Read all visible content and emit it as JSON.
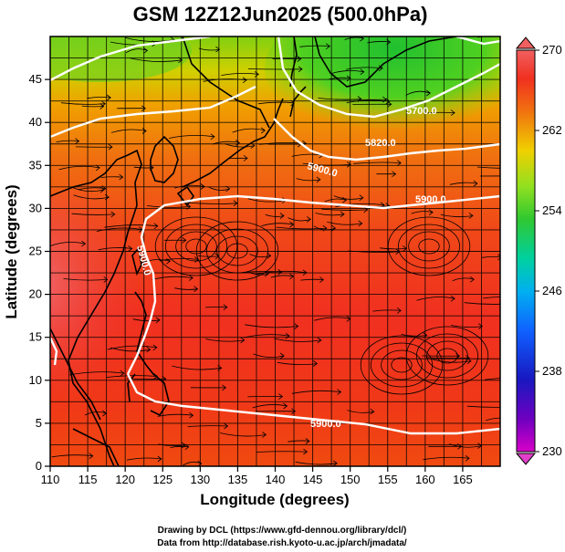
{
  "title": "GSM 12Z12Jun2025 (500.0hPa)",
  "xlabel": "Longitude (degrees)",
  "ylabel": "Latitude  (degrees)",
  "xticks": [
    "110",
    "115",
    "120",
    "125",
    "130",
    "135",
    "140",
    "145",
    "150",
    "155",
    "160",
    "165"
  ],
  "yticks": [
    "0",
    "5",
    "10",
    "15",
    "20",
    "25",
    "30",
    "35",
    "40",
    "45"
  ],
  "colorbar": {
    "ticks": [
      "230",
      "238",
      "246",
      "254",
      "262",
      "270"
    ]
  },
  "contours": {
    "labels": [
      "5900.0",
      "5900.0",
      "5900.0",
      "5900.0",
      "5820.0",
      "5700.0"
    ]
  },
  "credits": {
    "line1": "Drawing by DCL (https://www.gfd-dennou.org/library/dcl/)",
    "line2": "Data from http://database.rish.kyoto-u.ac.jp/arch/jmadata/"
  },
  "chart_data": {
    "type": "heatmap",
    "field": "temperature (K) shaded, geopotential height contours (m), streamlines",
    "level": "500.0hPa",
    "xlim": [
      110,
      170
    ],
    "ylim": [
      0,
      50
    ],
    "colorbar_range": [
      230,
      270
    ],
    "contour_values": [
      5700,
      5820,
      5900
    ]
  }
}
